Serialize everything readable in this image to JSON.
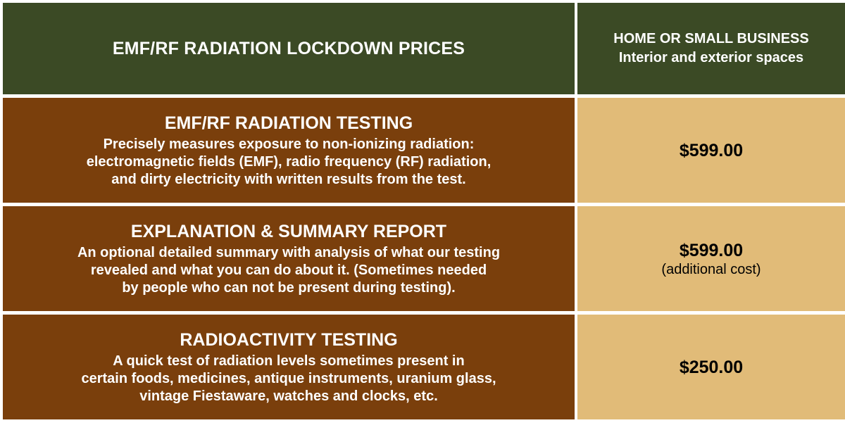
{
  "header": {
    "title": "EMF/RF RADIATION LOCKDOWN PRICES",
    "column_line1": "HOME OR SMALL BUSINESS",
    "column_line2": "Interior and exterior spaces"
  },
  "rows": [
    {
      "title": "EMF/RF RADIATION TESTING",
      "desc_lines": [
        "Precisely measures exposure to non-ionizing radiation:",
        "electromagnetic fields (EMF), radio frequency (RF) radiation,",
        "and dirty electricity with written results from the test."
      ],
      "price": "$599.00",
      "note": ""
    },
    {
      "title": "EXPLANATION & SUMMARY REPORT",
      "desc_lines": [
        "An optional detailed summary with analysis of what our testing",
        "revealed and what you can do about it. (Sometimes needed",
        "by people who can not be present during testing)."
      ],
      "price": "$599.00",
      "note": "(additional cost)"
    },
    {
      "title": "RADIOACTIVITY TESTING",
      "desc_lines": [
        "A quick test of radiation levels sometimes present in",
        "certain foods, medicines, antique instruments, uranium glass,",
        "vintage Fiestaware, watches and clocks, etc."
      ],
      "price": "$250.00",
      "note": ""
    }
  ],
  "colors": {
    "header_bg": "#3b4a25",
    "service_bg": "#7a3f0c",
    "price_bg": "#e1bb78"
  }
}
